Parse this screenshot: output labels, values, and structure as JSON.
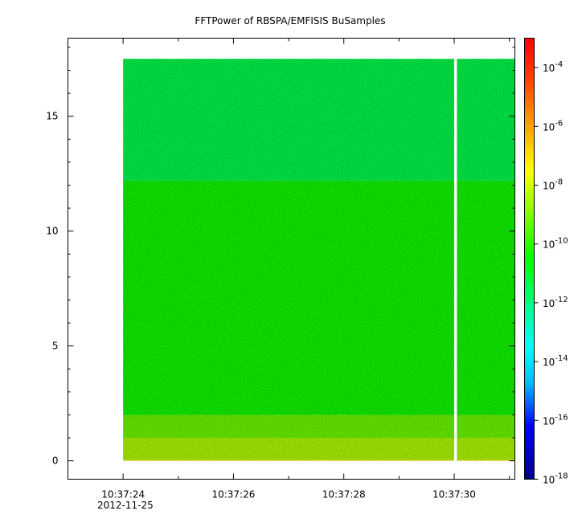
{
  "chart_data": {
    "type": "heatmap",
    "title": "FFTPower of RBSPA/EMFISIS  BuSamples",
    "xlabel": "",
    "ylabel": "",
    "x_date_label": "2012-11-25",
    "xlim": [
      "10:37:23.0",
      "10:37:31.1"
    ],
    "ylim": [
      -0.8,
      18.4
    ],
    "y_ticks": [
      0,
      5,
      10,
      15
    ],
    "y_tick_labels": [
      "0",
      "5",
      "10",
      "15"
    ],
    "x_ticks": [
      "10:37:24",
      "10:37:26",
      "10:37:28",
      "10:37:30"
    ],
    "x_minor_ticks": [
      "10:37:25",
      "10:37:27",
      "10:37:29",
      "10:37:31"
    ],
    "data_time_range": [
      "10:37:24.0",
      "10:37:31.1"
    ],
    "data_y_range": [
      0,
      17.5
    ],
    "data_gap": [
      "10:37:30.0",
      "10:37:30.05"
    ],
    "colorbar": {
      "scale": "log",
      "range": [
        1e-18,
        0.001
      ],
      "tick_exponents": [
        -4,
        -6,
        -8,
        -10,
        -12,
        -14,
        -16,
        -18
      ],
      "tick_base": "10",
      "colormap": "rainbow",
      "colors": [
        "#00008b",
        "#0000ff",
        "#00bfff",
        "#00ffff",
        "#00ff80",
        "#00ff00",
        "#7fff00",
        "#ffff00",
        "#ffa500",
        "#ff4500",
        "#ff0000"
      ]
    },
    "bands": [
      {
        "y_range": [
          0,
          0.05
        ],
        "log_power": -7.3
      },
      {
        "y_range": [
          0.05,
          1.0
        ],
        "log_power": -8.4
      },
      {
        "y_range": [
          1.0,
          2.0
        ],
        "log_power": -9.2
      },
      {
        "y_range": [
          2.0,
          12.2
        ],
        "log_power": -10.3
      },
      {
        "y_range": [
          12.2,
          17.5
        ],
        "log_power": -11.4
      }
    ]
  }
}
